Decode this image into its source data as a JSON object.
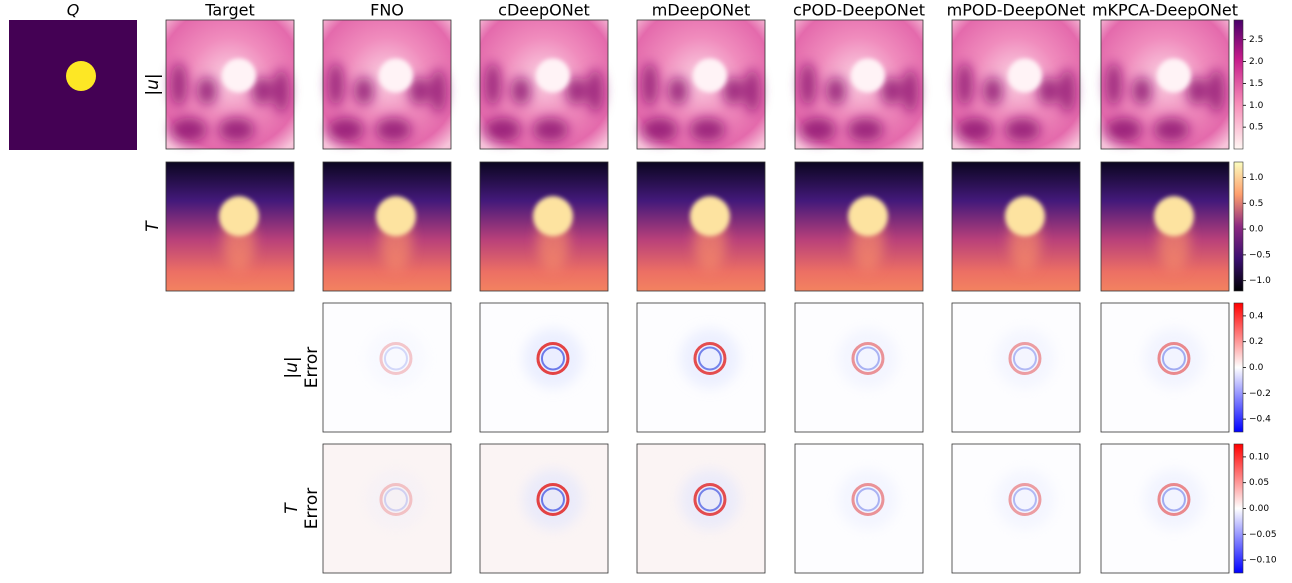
{
  "figure": {
    "q_title": "Q",
    "columns": [
      "Target",
      "FNO",
      "cDeepONet",
      "mDeepONet",
      "cPOD-DeepONet",
      "mPOD-DeepONet",
      "mKPCA-DeepONet"
    ],
    "row_labels": [
      [
        "|u|"
      ],
      [
        "T"
      ],
      [
        "|u|",
        "Error"
      ],
      [
        "T",
        "Error"
      ]
    ],
    "colorbars": [
      {
        "range": [
          0,
          2.95
        ],
        "ticks": [
          0.5,
          {
            "value": 1,
            "label": "1.0"
          },
          1.5,
          {
            "value": 2,
            "label": "2.0"
          },
          2.5
        ]
      },
      {
        "range": [
          -1.2,
          1.3
        ],
        "ticks": [
          {
            "value": -1,
            "label": "−1.0"
          },
          {
            "value": -0.5,
            "label": "−0.5"
          },
          {
            "value": 0,
            "label": "0.0"
          },
          0.5,
          {
            "value": 1,
            "label": "1.0"
          }
        ]
      },
      {
        "range": [
          -0.5,
          0.5
        ],
        "ticks": [
          {
            "value": -0.4,
            "label": "−0.4"
          },
          {
            "value": -0.2,
            "label": "−0.2"
          },
          {
            "value": 0,
            "label": "0.0"
          },
          0.2,
          0.4
        ]
      },
      {
        "range": [
          -0.125,
          0.125
        ],
        "ticks": [
          {
            "value": -0.1,
            "label": "−0.10"
          },
          {
            "value": -0.05,
            "label": "−0.05"
          },
          {
            "value": 0,
            "label": "0.00"
          },
          0.05,
          {
            "value": 0.1,
            "label": "0.10"
          }
        ]
      }
    ]
  }
}
